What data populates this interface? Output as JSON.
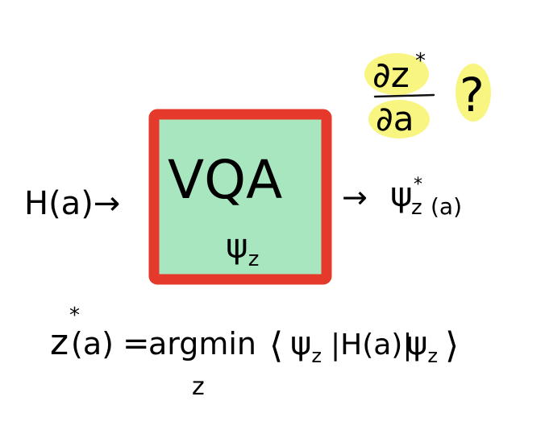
{
  "diagram": {
    "input": {
      "text": "H(a)→"
    },
    "box": {
      "title": "VQA",
      "state": {
        "main": "ψ",
        "sub": "z"
      },
      "fill_color": "#a8e6bf",
      "border_color": "#e53a2b"
    },
    "output": {
      "arrow": "→",
      "main": "ψ",
      "sub": "z",
      "sup": "*",
      "arg": "(a)"
    },
    "question": {
      "numerator": "∂z",
      "numerator_sup": "*",
      "denominator": "∂a",
      "mark": "?",
      "highlight_color": "#f7f36a"
    },
    "equation": {
      "lhs": "z",
      "lhs_sup": "*",
      "lhs_arg": "(a)",
      "equals": "=",
      "op": "argmin",
      "op_sub": "z",
      "bra_open": "⟨",
      "psi1": "ψ",
      "psi1_sub": "z",
      "middle": "|H(a)|",
      "psi2": "ψ",
      "psi2_sub": "z",
      "bra_close": "⟩"
    }
  }
}
